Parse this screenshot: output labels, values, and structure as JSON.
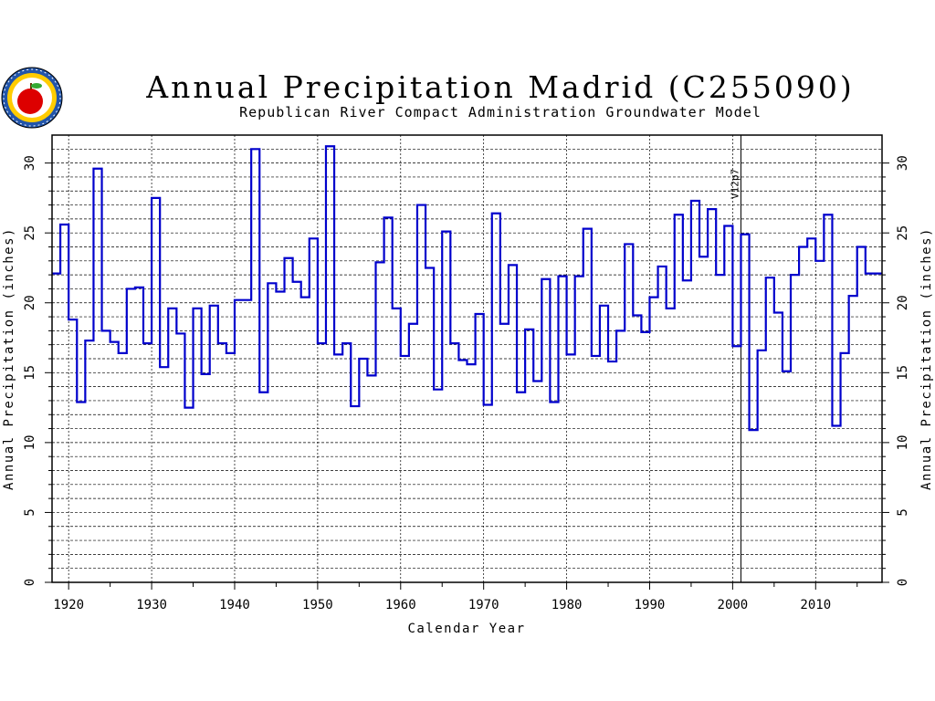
{
  "chart_data": {
    "type": "line",
    "step": true,
    "title": "Annual Precipitation Madrid (C255090)",
    "subtitle": "Republican River Compact Administration Groundwater Model",
    "xlabel": "Calendar Year",
    "ylabel": "Annual Precipitation (inches)",
    "xlim": [
      1918,
      2018
    ],
    "ylim": [
      0,
      32
    ],
    "xticks": [
      "1920",
      "1930",
      "1940",
      "1950",
      "1960",
      "1970",
      "1980",
      "1990",
      "2000",
      "2010"
    ],
    "yticks": [
      "0",
      "5",
      "10",
      "15",
      "20",
      "25",
      "30"
    ],
    "grid": true,
    "annotation": {
      "label": "V12p7",
      "x": 2001
    },
    "series": [
      {
        "color": "#0000cc",
        "x": [
          1918,
          1919,
          1920,
          1921,
          1922,
          1923,
          1924,
          1925,
          1926,
          1927,
          1928,
          1929,
          1930,
          1931,
          1932,
          1933,
          1934,
          1935,
          1936,
          1937,
          1938,
          1939,
          1940,
          1941,
          1942,
          1943,
          1944,
          1945,
          1946,
          1947,
          1948,
          1949,
          1950,
          1951,
          1952,
          1953,
          1954,
          1955,
          1956,
          1957,
          1958,
          1959,
          1960,
          1961,
          1962,
          1963,
          1964,
          1965,
          1966,
          1967,
          1968,
          1969,
          1970,
          1971,
          1972,
          1973,
          1974,
          1975,
          1976,
          1977,
          1978,
          1979,
          1980,
          1981,
          1982,
          1983,
          1984,
          1985,
          1986,
          1987,
          1988,
          1989,
          1990,
          1991,
          1992,
          1993,
          1994,
          1995,
          1996,
          1997,
          1998,
          1999,
          2000,
          2001,
          2002,
          2003,
          2004,
          2005,
          2006,
          2007,
          2008,
          2009,
          2010,
          2011,
          2012,
          2013,
          2014,
          2015,
          2016,
          2017
        ],
        "y": [
          22.1,
          25.6,
          18.8,
          12.9,
          17.3,
          29.6,
          18.0,
          17.2,
          16.4,
          21.0,
          21.1,
          17.1,
          27.5,
          15.4,
          19.6,
          17.8,
          12.5,
          19.6,
          14.9,
          19.8,
          17.1,
          16.4,
          20.2,
          20.2,
          31.0,
          13.6,
          21.4,
          20.8,
          23.2,
          21.5,
          20.4,
          24.6,
          17.1,
          31.2,
          16.3,
          17.1,
          12.6,
          16.0,
          14.8,
          22.9,
          26.1,
          19.6,
          16.2,
          18.5,
          27.0,
          22.5,
          13.8,
          25.1,
          17.1,
          15.9,
          15.6,
          19.2,
          12.7,
          26.4,
          18.5,
          22.7,
          13.6,
          18.1,
          14.4,
          21.7,
          12.9,
          21.9,
          16.3,
          21.9,
          25.3,
          16.2,
          19.8,
          15.8,
          18.0,
          24.2,
          19.1,
          17.9,
          20.4,
          22.6,
          19.6,
          26.3,
          21.6,
          27.3,
          23.3,
          26.7,
          22.0,
          25.5,
          16.9,
          24.9,
          10.9,
          16.6,
          21.8,
          19.3,
          15.1,
          22.0,
          24.0,
          24.6,
          23.0,
          26.3,
          11.2,
          16.4,
          20.5,
          24.0,
          22.1,
          22.1
        ]
      }
    ]
  },
  "logo": {
    "name": "nebraska-seal",
    "fill_colors": [
      "#ffcc00",
      "#2255aa",
      "#dd0000",
      "#33aa33"
    ]
  }
}
